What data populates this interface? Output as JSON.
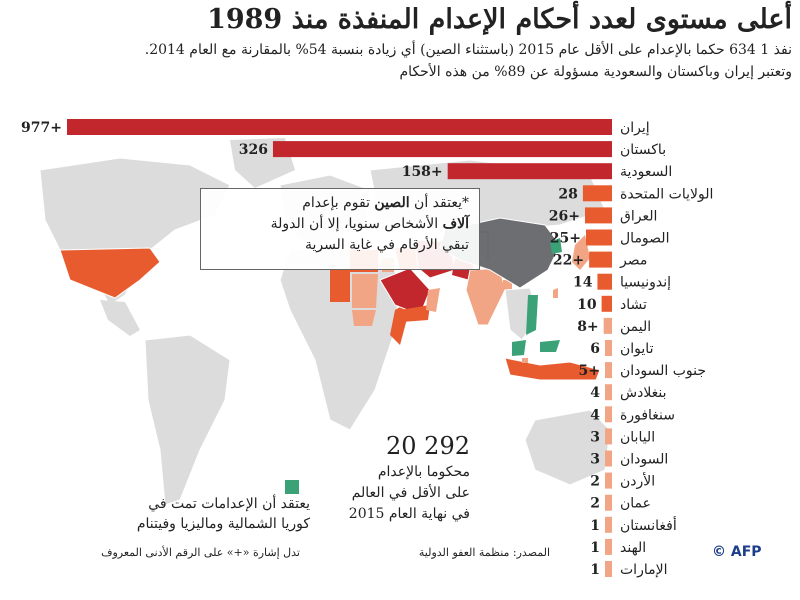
{
  "title": "أعلى مستوى لعدد أحكام الإعدام المنفذة منذ 1989",
  "subtitle_line1": "نفذ 1 634 حكما بالإعدام على الأقل عام 2015 (باستثناء الصين) أي زيادة بنسبة 54% بالمقارنة مع العام 2014.",
  "subtitle_line2": "وتعتبر إيران وباكستان والسعودية مسؤولة عن 89% من هذه الأحكام",
  "note": {
    "line1_pre": "*يعتقد أن ",
    "line1_bold": "الصين",
    "line1_post": " تقوم بإعدام",
    "line2_bold": "آلاف",
    "line2_post": " الأشخاص سنويا، إلا أن الدولة",
    "line3": "تبقي الأرقام في غاية السرية"
  },
  "total": {
    "number": "20 292",
    "line1": "محكوما بالإعدام",
    "line2": "على الأقل في العالم",
    "line3": "في نهاية العام 2015"
  },
  "legend": {
    "line1": "يعتقد أن الإعدامات تمت في",
    "line2": "كوريا الشمالية وماليزيا وفيتنام",
    "color": "#3aa276"
  },
  "footnote": "تدل إشارة «+» على الرقم الأدنى المعروف",
  "source": "المصدر: منظمة العفو الدولية",
  "credit": "© AFP",
  "colors": {
    "dark": "#c1272d",
    "medium": "#e85b2f",
    "light": "#f2a585",
    "china": "#6d6e71",
    "land": "#dcdcdc",
    "china_exec": "#3aa276"
  },
  "chart_data": {
    "type": "bar",
    "orientation": "horizontal",
    "direction": "right-to-left",
    "scale_break_on": [
      "إيران"
    ],
    "categories": [
      "إيران",
      "باكستان",
      "السعودية",
      "الولايات المتحدة",
      "العراق",
      "الصومال",
      "مصر",
      "إندونيسيا",
      "تشاد",
      "اليمن",
      "تايوان",
      "جنوب السودان",
      "بنغلادش",
      "سنغافورة",
      "اليابان",
      "السودان",
      "الأردن",
      "عمان",
      "أفغانستان",
      "الهند",
      "الإمارات"
    ],
    "values": [
      977,
      326,
      158,
      28,
      26,
      25,
      22,
      14,
      10,
      8,
      6,
      5,
      4,
      4,
      3,
      3,
      2,
      2,
      1,
      1,
      1
    ],
    "labels": [
      "977+",
      "326",
      "158+",
      "28",
      "26+",
      "25+",
      "22+",
      "14",
      "10",
      "8+",
      "6",
      "5+",
      "4",
      "4",
      "3",
      "3",
      "2",
      "2",
      "1",
      "1",
      "1"
    ],
    "tiers": [
      "dark",
      "dark",
      "dark",
      "medium",
      "medium",
      "medium",
      "medium",
      "medium",
      "medium",
      "light",
      "light",
      "light",
      "light",
      "light",
      "light",
      "light",
      "light",
      "light",
      "light",
      "light",
      "light"
    ]
  }
}
